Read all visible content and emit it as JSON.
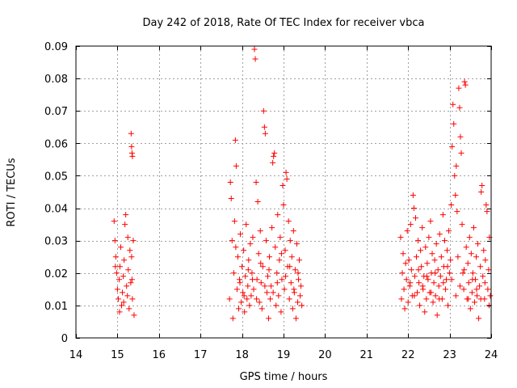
{
  "chart_data": {
    "type": "scatter",
    "title": "Day 242 of 2018, Rate Of TEC Index for receiver vbca",
    "xlabel": "GPS time / hours",
    "ylabel": "ROTI / TECUs",
    "xlim": [
      14,
      24
    ],
    "ylim": [
      0,
      0.09
    ],
    "x_ticks": [
      14,
      15,
      16,
      17,
      18,
      19,
      20,
      21,
      22,
      23,
      24
    ],
    "y_ticks": [
      0,
      0.01,
      0.02,
      0.03,
      0.04,
      0.05,
      0.06,
      0.07,
      0.08,
      0.09
    ],
    "x_tick_labels": [
      "14",
      "15",
      "16",
      "17",
      "18",
      "19",
      "20",
      "21",
      "22",
      "23",
      "24"
    ],
    "y_tick_labels": [
      "0",
      "0.01",
      "0.02",
      "0.03",
      "0.04",
      "0.05",
      "0.06",
      "0.07",
      "0.08",
      "0.09"
    ],
    "grid": true,
    "marker": "+",
    "color": "#ff0000",
    "series": [
      {
        "name": "ROTI",
        "points": [
          [
            14.92,
            0.036
          ],
          [
            14.94,
            0.03
          ],
          [
            14.96,
            0.025
          ],
          [
            14.98,
            0.02
          ],
          [
            15.0,
            0.015
          ],
          [
            15.02,
            0.012
          ],
          [
            15.04,
            0.018
          ],
          [
            15.06,
            0.022
          ],
          [
            15.08,
            0.028
          ],
          [
            15.1,
            0.01
          ],
          [
            15.12,
            0.014
          ],
          [
            15.14,
            0.019
          ],
          [
            15.16,
            0.024
          ],
          [
            15.18,
            0.035
          ],
          [
            15.2,
            0.038
          ],
          [
            15.22,
            0.016
          ],
          [
            15.24,
            0.013
          ],
          [
            15.26,
            0.021
          ],
          [
            15.28,
            0.009
          ],
          [
            15.3,
            0.027
          ],
          [
            15.32,
            0.017
          ],
          [
            15.34,
            0.025
          ],
          [
            15.36,
            0.012
          ],
          [
            15.38,
            0.03
          ],
          [
            15.4,
            0.007
          ],
          [
            14.95,
            0.022
          ],
          [
            15.05,
            0.008
          ],
          [
            15.15,
            0.011
          ],
          [
            15.25,
            0.031
          ],
          [
            15.35,
            0.018
          ],
          [
            15.33,
            0.063
          ],
          [
            15.34,
            0.059
          ],
          [
            15.35,
            0.057
          ],
          [
            15.36,
            0.056
          ],
          [
            17.7,
            0.012
          ],
          [
            17.72,
            0.048
          ],
          [
            17.74,
            0.043
          ],
          [
            17.76,
            0.03
          ],
          [
            17.78,
            0.006
          ],
          [
            17.8,
            0.02
          ],
          [
            17.82,
            0.036
          ],
          [
            17.84,
            0.061
          ],
          [
            17.86,
            0.053
          ],
          [
            17.88,
            0.015
          ],
          [
            17.9,
            0.025
          ],
          [
            17.92,
            0.009
          ],
          [
            17.94,
            0.018
          ],
          [
            17.96,
            0.032
          ],
          [
            17.98,
            0.011
          ],
          [
            18.0,
            0.022
          ],
          [
            18.02,
            0.014
          ],
          [
            18.04,
            0.027
          ],
          [
            18.06,
            0.008
          ],
          [
            18.08,
            0.019
          ],
          [
            18.1,
            0.035
          ],
          [
            18.12,
            0.012
          ],
          [
            18.14,
            0.016
          ],
          [
            18.16,
            0.024
          ],
          [
            18.18,
            0.01
          ],
          [
            18.2,
            0.029
          ],
          [
            18.22,
            0.013
          ],
          [
            18.24,
            0.02
          ],
          [
            18.26,
            0.031
          ],
          [
            18.28,
            0.015
          ],
          [
            18.3,
            0.089
          ],
          [
            18.32,
            0.086
          ],
          [
            18.34,
            0.048
          ],
          [
            18.36,
            0.018
          ],
          [
            18.38,
            0.042
          ],
          [
            18.4,
            0.026
          ],
          [
            18.42,
            0.011
          ],
          [
            18.44,
            0.033
          ],
          [
            18.46,
            0.017
          ],
          [
            18.48,
            0.009
          ],
          [
            18.5,
            0.022
          ],
          [
            18.52,
            0.07
          ],
          [
            18.54,
            0.065
          ],
          [
            18.56,
            0.063
          ],
          [
            18.58,
            0.03
          ],
          [
            18.6,
            0.014
          ],
          [
            18.62,
            0.019
          ],
          [
            18.64,
            0.006
          ],
          [
            18.66,
            0.025
          ],
          [
            18.68,
            0.012
          ],
          [
            18.7,
            0.016
          ],
          [
            18.72,
            0.034
          ],
          [
            18.74,
            0.054
          ],
          [
            18.76,
            0.056
          ],
          [
            18.78,
            0.057
          ],
          [
            18.8,
            0.028
          ],
          [
            18.82,
            0.01
          ],
          [
            18.84,
            0.02
          ],
          [
            18.86,
            0.038
          ],
          [
            18.88,
            0.013
          ],
          [
            18.9,
            0.024
          ],
          [
            18.92,
            0.031
          ],
          [
            18.94,
            0.008
          ],
          [
            18.96,
            0.018
          ],
          [
            18.98,
            0.047
          ],
          [
            19.0,
            0.041
          ],
          [
            19.02,
            0.015
          ],
          [
            19.04,
            0.027
          ],
          [
            19.06,
            0.051
          ],
          [
            19.08,
            0.049
          ],
          [
            19.1,
            0.022
          ],
          [
            19.12,
            0.036
          ],
          [
            19.14,
            0.012
          ],
          [
            19.16,
            0.03
          ],
          [
            19.18,
            0.017
          ],
          [
            19.2,
            0.025
          ],
          [
            19.22,
            0.009
          ],
          [
            19.24,
            0.033
          ],
          [
            19.26,
            0.014
          ],
          [
            19.28,
            0.021
          ],
          [
            19.3,
            0.006
          ],
          [
            19.32,
            0.029
          ],
          [
            19.34,
            0.011
          ],
          [
            19.36,
            0.018
          ],
          [
            19.38,
            0.024
          ],
          [
            19.4,
            0.013
          ],
          [
            19.42,
            0.016
          ],
          [
            19.44,
            0.01
          ],
          [
            17.85,
            0.028
          ],
          [
            17.95,
            0.017
          ],
          [
            18.05,
            0.013
          ],
          [
            18.15,
            0.021
          ],
          [
            18.25,
            0.018
          ],
          [
            18.35,
            0.012
          ],
          [
            18.45,
            0.023
          ],
          [
            18.55,
            0.016
          ],
          [
            18.65,
            0.021
          ],
          [
            18.75,
            0.014
          ],
          [
            18.85,
            0.017
          ],
          [
            18.95,
            0.026
          ],
          [
            19.05,
            0.019
          ],
          [
            19.15,
            0.022
          ],
          [
            19.25,
            0.015
          ],
          [
            19.35,
            0.02
          ],
          [
            21.82,
            0.031
          ],
          [
            21.84,
            0.012
          ],
          [
            21.86,
            0.02
          ],
          [
            21.88,
            0.026
          ],
          [
            21.9,
            0.015
          ],
          [
            21.92,
            0.009
          ],
          [
            21.94,
            0.023
          ],
          [
            21.96,
            0.018
          ],
          [
            21.98,
            0.033
          ],
          [
            22.0,
            0.011
          ],
          [
            22.02,
            0.024
          ],
          [
            22.04,
            0.016
          ],
          [
            22.06,
            0.035
          ],
          [
            22.08,
            0.021
          ],
          [
            22.1,
            0.013
          ],
          [
            22.12,
            0.044
          ],
          [
            22.14,
            0.04
          ],
          [
            22.16,
            0.019
          ],
          [
            22.18,
            0.037
          ],
          [
            22.2,
            0.025
          ],
          [
            22.22,
            0.014
          ],
          [
            22.24,
            0.03
          ],
          [
            22.26,
            0.017
          ],
          [
            22.28,
            0.01
          ],
          [
            22.3,
            0.027
          ],
          [
            22.32,
            0.022
          ],
          [
            22.34,
            0.034
          ],
          [
            22.36,
            0.015
          ],
          [
            22.38,
            0.019
          ],
          [
            22.4,
            0.008
          ],
          [
            22.42,
            0.028
          ],
          [
            22.44,
            0.012
          ],
          [
            22.46,
            0.023
          ],
          [
            22.48,
            0.018
          ],
          [
            22.5,
            0.031
          ],
          [
            22.52,
            0.014
          ],
          [
            22.54,
            0.036
          ],
          [
            22.56,
            0.02
          ],
          [
            22.58,
            0.026
          ],
          [
            22.6,
            0.011
          ],
          [
            22.62,
            0.017
          ],
          [
            22.64,
            0.024
          ],
          [
            22.66,
            0.013
          ],
          [
            22.68,
            0.029
          ],
          [
            22.7,
            0.007
          ],
          [
            22.72,
            0.021
          ],
          [
            22.74,
            0.016
          ],
          [
            22.76,
            0.032
          ],
          [
            22.78,
            0.019
          ],
          [
            22.8,
            0.025
          ],
          [
            22.82,
            0.012
          ],
          [
            22.84,
            0.038
          ],
          [
            22.86,
            0.022
          ],
          [
            22.88,
            0.03
          ],
          [
            22.9,
            0.015
          ],
          [
            22.92,
            0.018
          ],
          [
            22.94,
            0.027
          ],
          [
            22.96,
            0.01
          ],
          [
            22.98,
            0.033
          ],
          [
            23.0,
            0.02
          ],
          [
            23.02,
            0.024
          ],
          [
            23.04,
            0.041
          ],
          [
            23.06,
            0.059
          ],
          [
            23.08,
            0.072
          ],
          [
            23.1,
            0.066
          ],
          [
            23.12,
            0.05
          ],
          [
            23.14,
            0.044
          ],
          [
            23.16,
            0.053
          ],
          [
            23.18,
            0.039
          ],
          [
            23.2,
            0.025
          ],
          [
            23.22,
            0.077
          ],
          [
            23.24,
            0.071
          ],
          [
            23.26,
            0.062
          ],
          [
            23.28,
            0.057
          ],
          [
            23.3,
            0.035
          ],
          [
            23.32,
            0.02
          ],
          [
            23.34,
            0.015
          ],
          [
            23.36,
            0.079
          ],
          [
            23.38,
            0.078
          ],
          [
            23.4,
            0.028
          ],
          [
            23.42,
            0.012
          ],
          [
            23.44,
            0.023
          ],
          [
            23.46,
            0.017
          ],
          [
            23.48,
            0.031
          ],
          [
            23.5,
            0.009
          ],
          [
            23.52,
            0.026
          ],
          [
            23.54,
            0.014
          ],
          [
            23.56,
            0.02
          ],
          [
            23.58,
            0.034
          ],
          [
            23.6,
            0.011
          ],
          [
            23.62,
            0.018
          ],
          [
            23.64,
            0.025
          ],
          [
            23.66,
            0.013
          ],
          [
            23.68,
            0.029
          ],
          [
            23.7,
            0.006
          ],
          [
            23.72,
            0.016
          ],
          [
            23.74,
            0.022
          ],
          [
            23.76,
            0.045
          ],
          [
            23.78,
            0.047
          ],
          [
            23.8,
            0.019
          ],
          [
            23.82,
            0.027
          ],
          [
            23.84,
            0.012
          ],
          [
            23.86,
            0.024
          ],
          [
            23.88,
            0.041
          ],
          [
            23.9,
            0.039
          ],
          [
            23.92,
            0.015
          ],
          [
            23.94,
            0.021
          ],
          [
            23.96,
            0.031
          ],
          [
            23.98,
            0.013
          ],
          [
            22.05,
            0.017
          ],
          [
            22.15,
            0.013
          ],
          [
            22.25,
            0.021
          ],
          [
            22.35,
            0.016
          ],
          [
            22.45,
            0.019
          ],
          [
            22.55,
            0.014
          ],
          [
            22.65,
            0.02
          ],
          [
            22.75,
            0.012
          ],
          [
            22.85,
            0.017
          ],
          [
            22.95,
            0.022
          ],
          [
            23.05,
            0.018
          ],
          [
            23.15,
            0.013
          ],
          [
            23.25,
            0.016
          ],
          [
            23.35,
            0.021
          ],
          [
            23.45,
            0.012
          ],
          [
            23.55,
            0.018
          ],
          [
            23.65,
            0.015
          ],
          [
            23.75,
            0.012
          ],
          [
            23.85,
            0.017
          ],
          [
            23.95,
            0.01
          ]
        ]
      }
    ]
  }
}
